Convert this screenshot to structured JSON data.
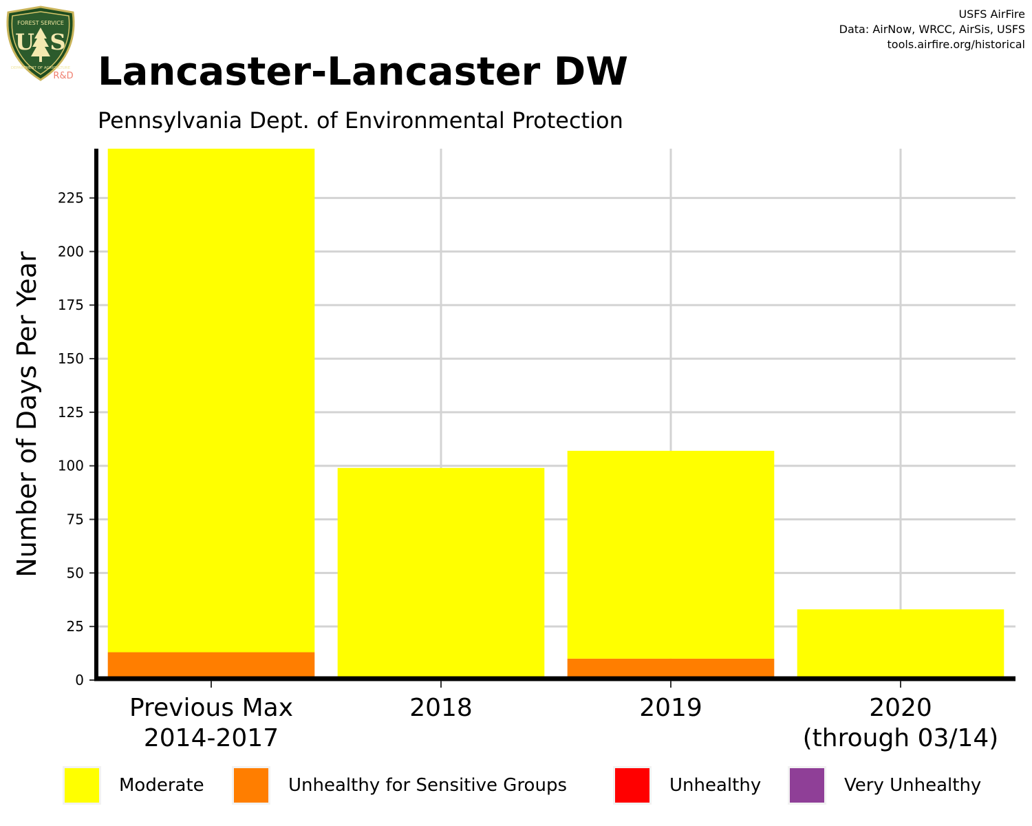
{
  "header": {
    "title": "Lancaster-Lancaster DW",
    "subtitle": "Pennsylvania Dept. of Environmental Protection",
    "credits": [
      "USFS AirFire",
      "Data: AirNow, WRCC, AirSis, USFS",
      "tools.airfire.org/historical"
    ]
  },
  "logo": {
    "top_text": "FOREST SERVICE",
    "initials": "US",
    "bottom_text": "DEPARTMENT OF AGRICULTURE",
    "tag": "R&D"
  },
  "colors": {
    "moderate": "#ffff00",
    "usg": "#ff7e00",
    "unhealthy": "#ff0000",
    "very_unhealthy": "#8f3f97",
    "grid": "#d3d3d3"
  },
  "chart_data": {
    "type": "bar",
    "stacked": true,
    "categories": [
      [
        "Previous Max",
        "2014-2017"
      ],
      [
        "2018"
      ],
      [
        "2019"
      ],
      [
        "2020",
        "(through 03/14)"
      ]
    ],
    "series": [
      {
        "name": "Moderate",
        "color": "#ffff00",
        "values": [
          235,
          99,
          97,
          33
        ]
      },
      {
        "name": "Unhealthy for Sensitive Groups",
        "color": "#ff7e00",
        "values": [
          13,
          0,
          10,
          0
        ]
      },
      {
        "name": "Unhealthy",
        "color": "#ff0000",
        "values": [
          0,
          0,
          0,
          0
        ]
      },
      {
        "name": "Very Unhealthy",
        "color": "#8f3f97",
        "values": [
          0,
          0,
          0,
          0
        ]
      }
    ],
    "ylabel": "Number of Days Per Year",
    "xlabel": "",
    "ylim": [
      0,
      248
    ],
    "yticks": [
      0,
      25,
      50,
      75,
      100,
      125,
      150,
      175,
      200,
      225
    ],
    "grid": true,
    "legend_position": "bottom"
  }
}
